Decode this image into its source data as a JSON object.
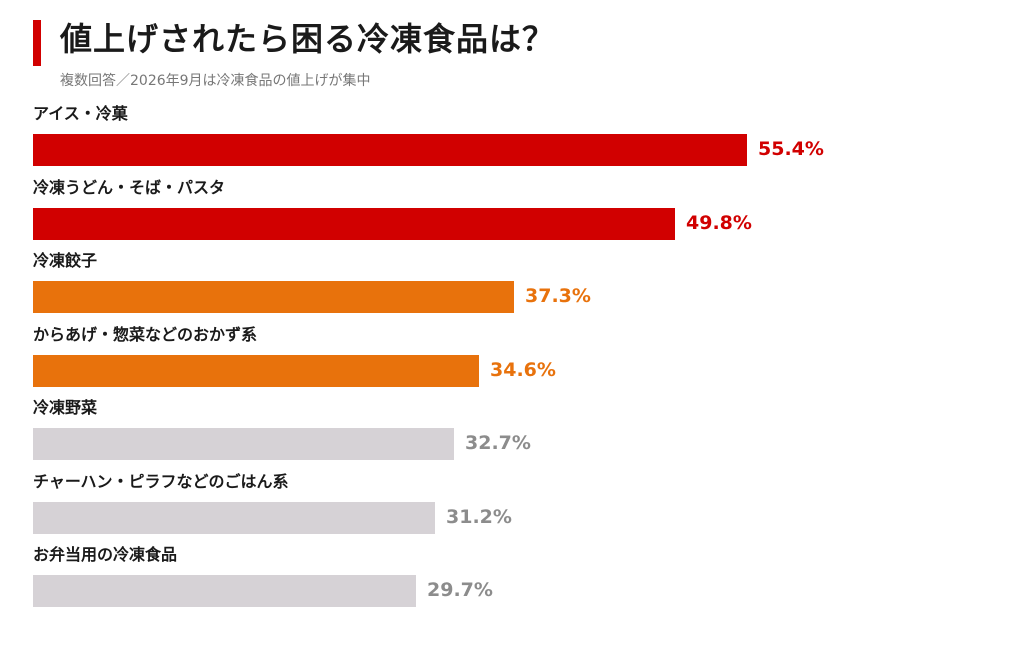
{
  "header": {
    "title": "値上げされたら困る冷凍食品は？",
    "subtitle": "複数回答／2026年9月は冷凍食品の値上げが集中"
  },
  "colors": {
    "accent": "#d10000",
    "high": "#d10000",
    "mid": "#e8720c",
    "low": "#d6d2d6",
    "low_text": "#8c8c8c"
  },
  "chart_data": {
    "type": "bar",
    "orientation": "horizontal",
    "categories": [
      "アイス・冷菓",
      "冷凍うどん・そば・パスタ",
      "冷凍餃子",
      "からあげ・惣菜などのおかず系",
      "冷凍野菜",
      "チャーハン・ピラフなどのごはん系",
      "お弁当用の冷凍食品"
    ],
    "values": [
      55.4,
      49.8,
      37.3,
      34.6,
      32.7,
      31.2,
      29.7
    ],
    "value_labels": [
      "55.4%",
      "49.8%",
      "37.3%",
      "34.6%",
      "32.7%",
      "31.2%",
      "29.7%"
    ],
    "tiers": [
      "high",
      "high",
      "mid",
      "mid",
      "low",
      "low",
      "low"
    ],
    "xlim": [
      0,
      55.4
    ],
    "grid": false,
    "legend": "none"
  }
}
